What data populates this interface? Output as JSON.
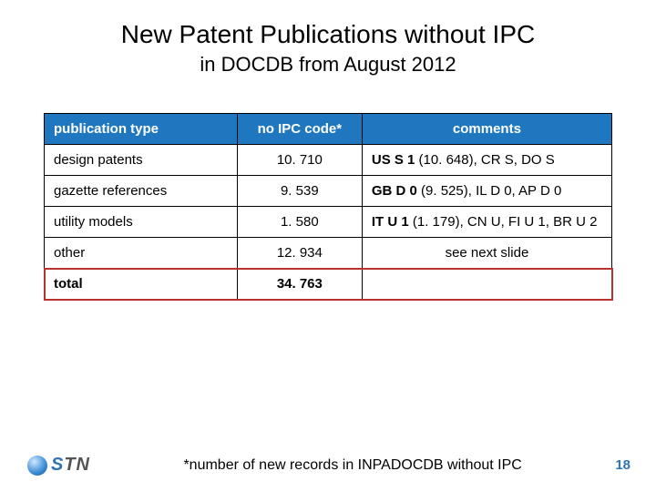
{
  "title": "New Patent Publications without IPC",
  "subtitle": "in DOCDB from August 2012",
  "table": {
    "headers": {
      "pubtype": "publication type",
      "ipc": "no IPC code*",
      "comments": "comments"
    },
    "rows": [
      {
        "pubtype": "design patents",
        "ipc": "10. 710",
        "comments_bold": "US S 1",
        "comments_rest": " (10. 648), CR S, DO S"
      },
      {
        "pubtype": "gazette references",
        "ipc": "9. 539",
        "comments_bold": "GB D 0",
        "comments_rest": " (9. 525), IL D 0, AP D 0"
      },
      {
        "pubtype": "utility models",
        "ipc": "1. 580",
        "comments_bold": "IT U 1",
        "comments_rest": " (1. 179), CN U, FI U 1, BR U 2"
      },
      {
        "pubtype": "other",
        "ipc": "12. 934",
        "comments_center": "see next slide"
      }
    ],
    "total": {
      "label": "total",
      "value": "34. 763"
    }
  },
  "footnote": "*number of new records in INPADOCDB without IPC",
  "page_number": "18",
  "logo": {
    "s": "S",
    "tn": "TN"
  },
  "colors": {
    "header_bg": "#1f78bf",
    "header_fg": "#ffffff",
    "total_outline": "#b83030",
    "page_num": "#2f73b5"
  }
}
